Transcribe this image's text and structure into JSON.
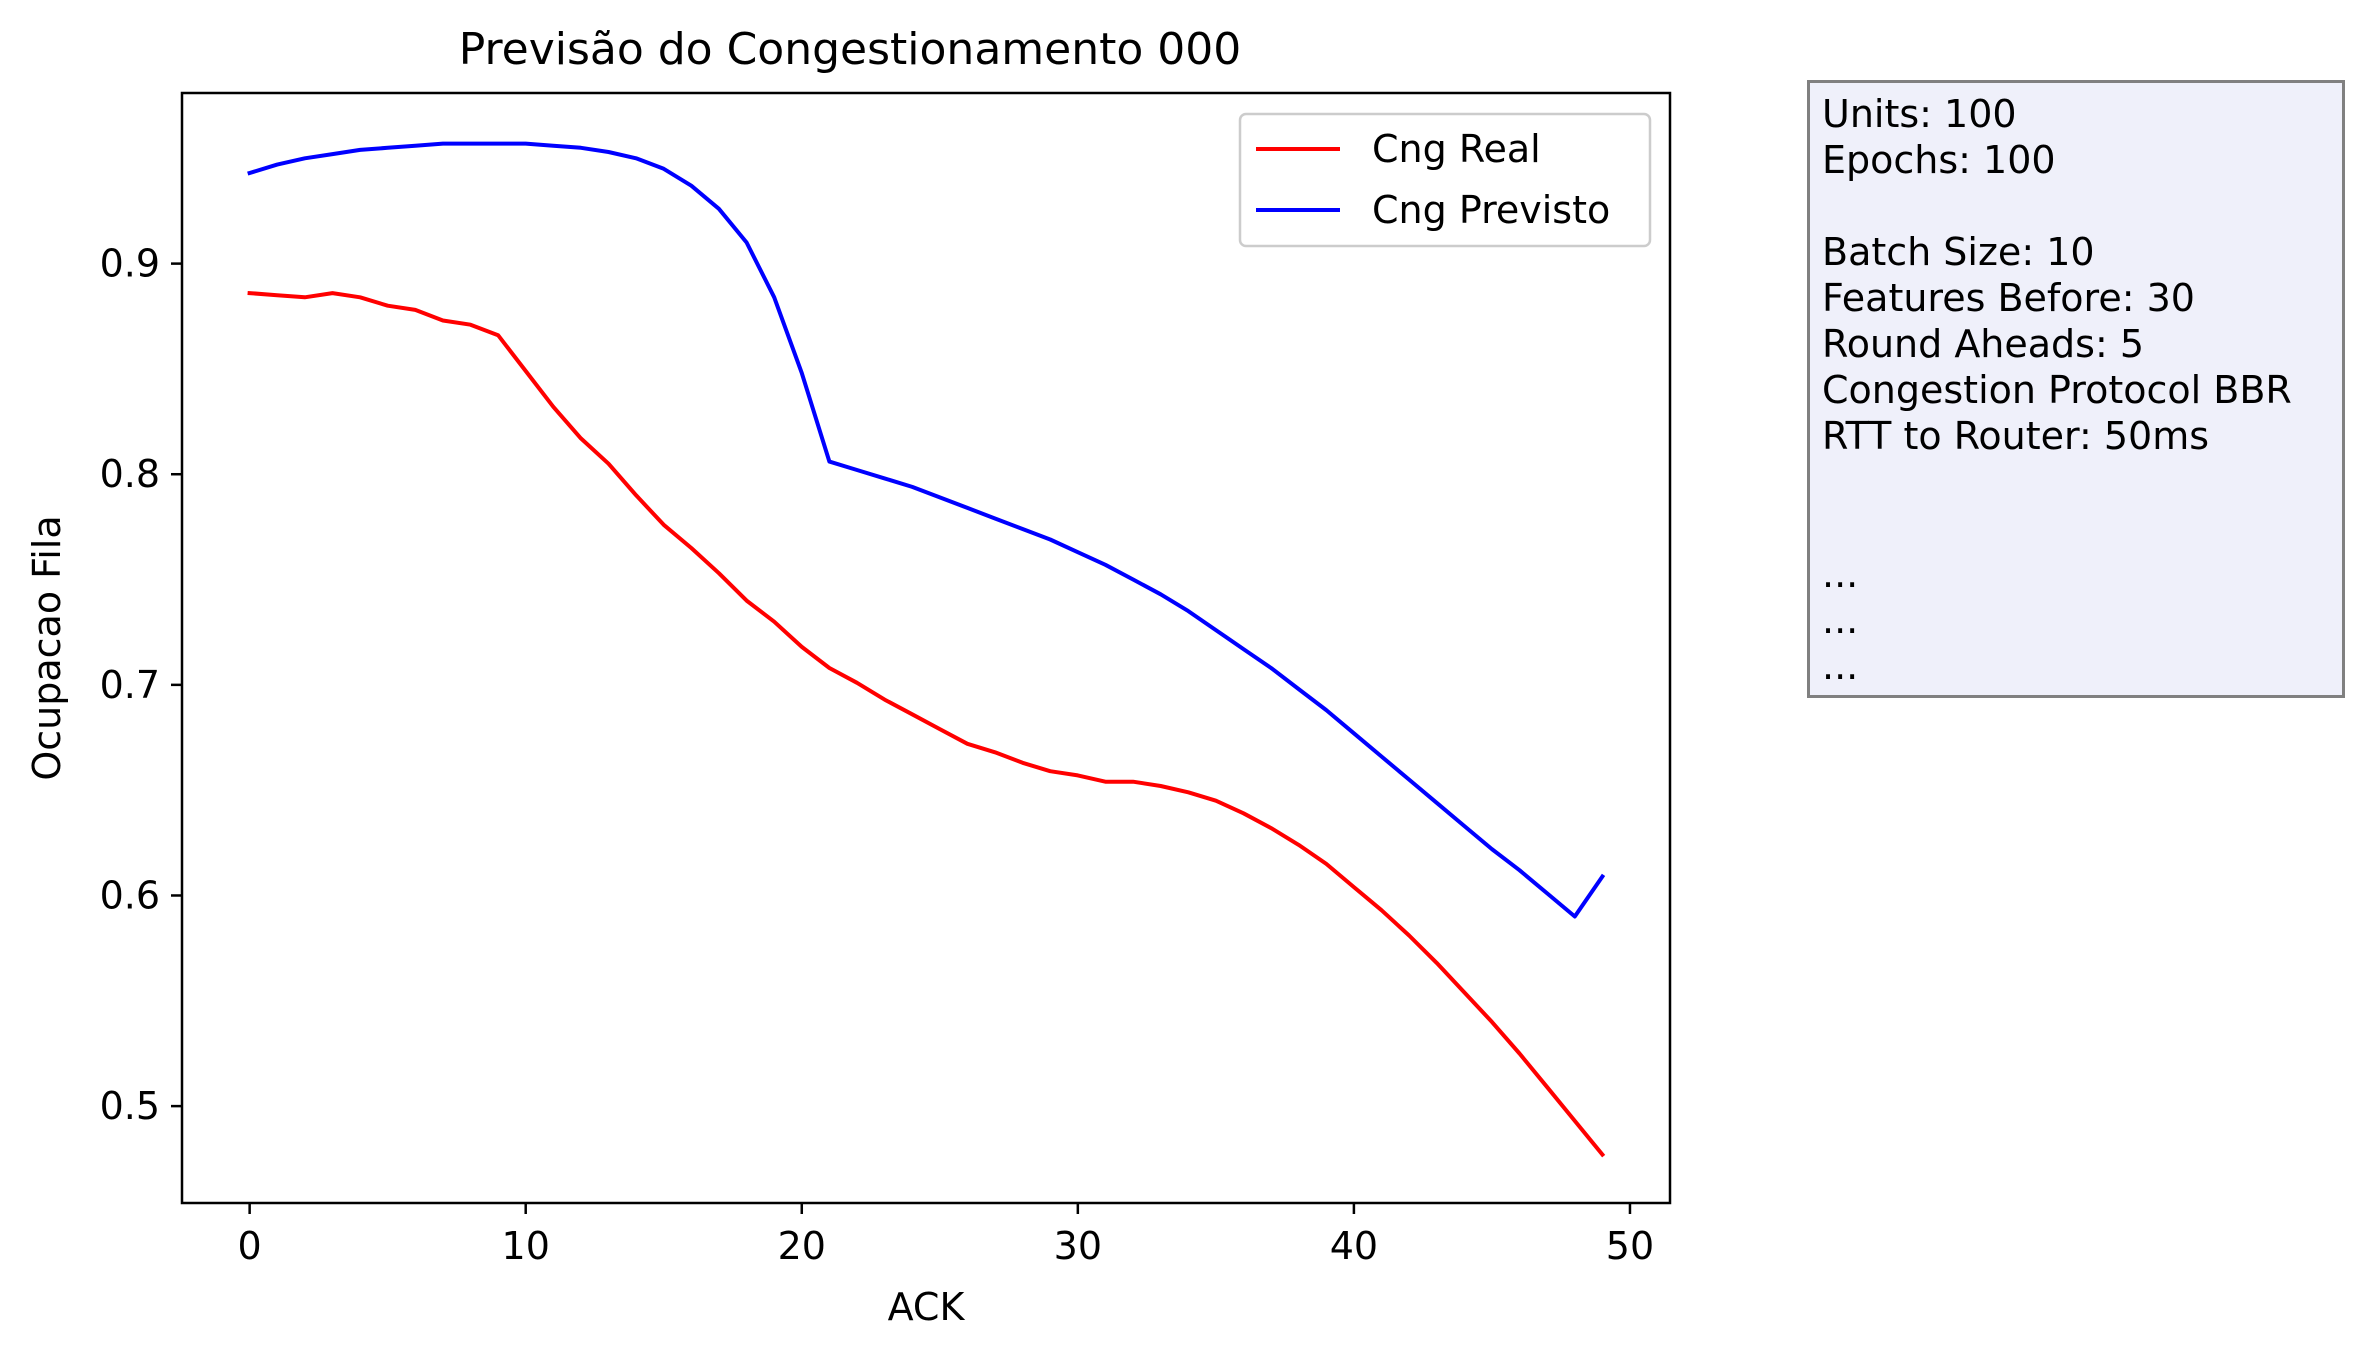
{
  "chart_data": {
    "type": "line",
    "title": "Previsão do Congestionamento 000",
    "xlabel": "ACK",
    "ylabel": "Ocupacao Fila",
    "xlim": [
      -2.45,
      51.45
    ],
    "ylim": [
      0.454,
      0.981
    ],
    "xticks": [
      0,
      10,
      20,
      30,
      40,
      50
    ],
    "yticks": [
      0.5,
      0.6,
      0.7,
      0.8,
      0.9
    ],
    "ytick_labels": [
      "0.5",
      "0.6",
      "0.7",
      "0.8",
      "0.9"
    ],
    "grid": false,
    "legend_position": "top-right",
    "x": [
      0,
      1,
      2,
      3,
      4,
      5,
      6,
      7,
      8,
      9,
      10,
      11,
      12,
      13,
      14,
      15,
      16,
      17,
      18,
      19,
      20,
      21,
      22,
      23,
      24,
      25,
      26,
      27,
      28,
      29,
      30,
      31,
      32,
      33,
      34,
      35,
      36,
      37,
      38,
      39,
      40,
      41,
      42,
      43,
      44,
      45,
      46,
      47,
      48,
      49
    ],
    "series": [
      {
        "name": "Cng Real",
        "color": "#ff0000",
        "values": [
          0.886,
          0.885,
          0.884,
          0.886,
          0.884,
          0.88,
          0.878,
          0.873,
          0.871,
          0.866,
          0.849,
          0.832,
          0.817,
          0.805,
          0.79,
          0.776,
          0.765,
          0.753,
          0.74,
          0.73,
          0.718,
          0.708,
          0.701,
          0.693,
          0.686,
          0.679,
          0.672,
          0.668,
          0.663,
          0.659,
          0.657,
          0.654,
          0.654,
          0.652,
          0.649,
          0.645,
          0.639,
          0.632,
          0.624,
          0.615,
          0.604,
          0.593,
          0.581,
          0.568,
          0.554,
          0.54,
          0.525,
          0.509,
          0.493,
          0.477
        ]
      },
      {
        "name": "Cng Previsto",
        "color": "#0000ff",
        "values": [
          0.943,
          0.947,
          0.95,
          0.952,
          0.954,
          0.955,
          0.956,
          0.957,
          0.957,
          0.957,
          0.957,
          0.956,
          0.955,
          0.953,
          0.95,
          0.945,
          0.937,
          0.926,
          0.91,
          0.884,
          0.848,
          0.806,
          0.802,
          0.798,
          0.794,
          0.789,
          0.784,
          0.779,
          0.774,
          0.769,
          0.763,
          0.757,
          0.75,
          0.743,
          0.735,
          0.726,
          0.717,
          0.708,
          0.698,
          0.688,
          0.677,
          0.666,
          0.655,
          0.644,
          0.633,
          0.622,
          0.612,
          0.601,
          0.59,
          0.609
        ]
      }
    ]
  },
  "info_box": {
    "lines": [
      "Units: 100",
      "Epochs: 100",
      "",
      "Batch Size: 10",
      "Features Before: 30",
      "Round Aheads: 5",
      "Congestion Protocol BBR",
      "RTT to Router: 50ms",
      "",
      "",
      "...",
      "...",
      "..."
    ]
  }
}
